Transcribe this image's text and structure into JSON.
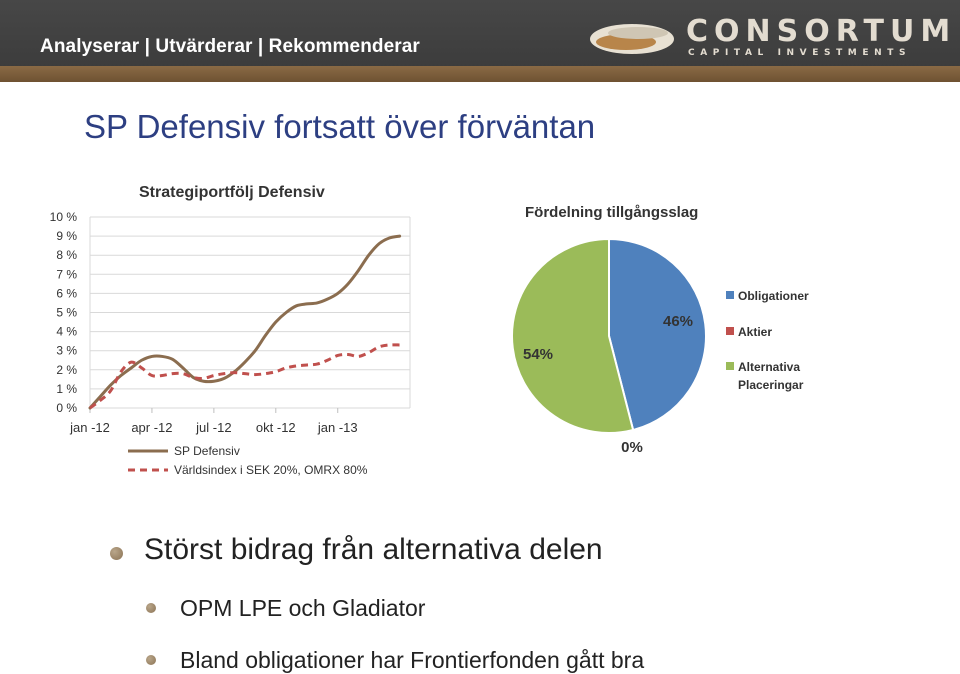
{
  "header": {
    "tagline": "Analyserar | Utvärderar | Rekommenderar",
    "logo_word": "CONSORTUM",
    "logo_sub": "CAPITAL INVESTMENTS",
    "colors": {
      "band": "#404040",
      "bar": "#7a5c3a",
      "logo": "#e3dcd0"
    }
  },
  "slide": {
    "title": "SP Defensiv fortsatt över förväntan"
  },
  "bullets": [
    {
      "text": "Störst bidrag från alternativa delen"
    },
    {
      "text": "OPM LPE och Gladiator"
    },
    {
      "text": "Bland obligationer har Frontierfonden gått bra"
    }
  ],
  "chart_data": [
    {
      "type": "line",
      "title": "Strategiportfölj Defensiv",
      "y_ticks": [
        "0 %",
        "1 %",
        "2 %",
        "3 %",
        "4 %",
        "5 %",
        "6 %",
        "7 %",
        "8 %",
        "9 %",
        "10 %"
      ],
      "x_ticks": [
        "jan -12",
        "apr -12",
        "jul -12",
        "okt -12",
        "jan -13"
      ],
      "ylim": [
        0,
        10
      ],
      "xlim": [
        0,
        15.5
      ],
      "grid": true,
      "legend_position": "bottom",
      "series": [
        {
          "name": "SP Defensiv",
          "color": "#8b6d4f",
          "style": "solid",
          "x": [
            0,
            0.5,
            1,
            1.5,
            2,
            2.5,
            3,
            3.5,
            4,
            4.5,
            5,
            5.5,
            6,
            6.5,
            7,
            7.5,
            8,
            8.5,
            9,
            9.5,
            10,
            10.5,
            11,
            11.5,
            12,
            12.5,
            13,
            13.5,
            14,
            14.5,
            15
          ],
          "y": [
            0,
            0.6,
            1.2,
            1.7,
            2.1,
            2.5,
            2.7,
            2.7,
            2.55,
            2.1,
            1.6,
            1.4,
            1.4,
            1.55,
            1.9,
            2.4,
            3.0,
            3.8,
            4.5,
            5.0,
            5.35,
            5.45,
            5.5,
            5.7,
            6.0,
            6.5,
            7.2,
            8.0,
            8.6,
            8.9,
            9.0
          ]
        },
        {
          "name": "Världsindex i SEK 20%, OMRX 80%",
          "color": "#c0504d",
          "style": "dashed",
          "x": [
            0,
            0.5,
            1,
            1.5,
            2,
            2.5,
            3,
            3.5,
            4,
            4.5,
            5,
            5.5,
            6,
            6.5,
            7,
            7.5,
            8,
            8.5,
            9,
            9.5,
            10,
            10.5,
            11,
            11.5,
            12,
            12.5,
            13,
            13.5,
            14,
            14.5,
            15
          ],
          "y": [
            0,
            0.4,
            0.9,
            1.9,
            2.4,
            2.1,
            1.7,
            1.7,
            1.8,
            1.8,
            1.6,
            1.55,
            1.7,
            1.8,
            1.85,
            1.8,
            1.75,
            1.8,
            1.9,
            2.1,
            2.2,
            2.25,
            2.3,
            2.5,
            2.75,
            2.8,
            2.7,
            2.9,
            3.2,
            3.3,
            3.3
          ]
        }
      ]
    },
    {
      "type": "pie",
      "title": "Fördelning tillgångsslag",
      "legend_position": "right",
      "slices": [
        {
          "name": "Obligationer",
          "value": 46,
          "label": "46%",
          "color": "#4f81bd"
        },
        {
          "name": "Aktier",
          "value": 0,
          "label": "0%",
          "color": "#c0504d"
        },
        {
          "name": "Alternativa Placeringar",
          "value": 54,
          "label": "54%",
          "color": "#9bbb59"
        }
      ]
    }
  ]
}
